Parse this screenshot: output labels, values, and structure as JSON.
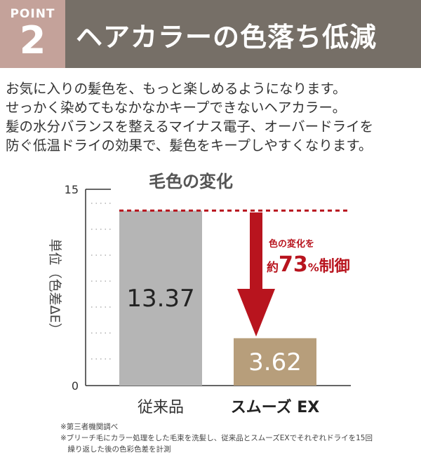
{
  "header": {
    "point_label": "POINT",
    "point_number": "2",
    "title": "ヘアカラーの色落ち低減",
    "colors": {
      "point_bg": "#c4a29a",
      "title_bg": "#766f67"
    }
  },
  "description": [
    "お気に入りの髪色を、もっと楽しめるようになります。",
    "せっかく染めてもなかなかキープできないヘアカラー。",
    "髪の水分バランスを整えるマイナス電子、オーバードライを",
    "防ぐ低温ドライの効果で、髪色をキープしやすくなります。"
  ],
  "chart_data": {
    "type": "bar",
    "title": "毛色の変化",
    "ylabel": "単位（色差ΔE）",
    "categories": [
      "従来品",
      "スムーズ EX"
    ],
    "values": [
      13.37,
      3.62
    ],
    "value_labels": [
      "13.37",
      "3.62"
    ],
    "yticks": [
      "0",
      "15"
    ],
    "ylim": [
      0,
      15
    ],
    "colors": [
      "#b5b5b5",
      "#b79e7b"
    ],
    "annotation": {
      "line1": "色の変化を",
      "prefix": "約",
      "number": "73",
      "unit": "%",
      "suffix": "制御",
      "color": "#b8141e"
    }
  },
  "notes": [
    "※第三者機関調べ",
    "※ブリーチ毛にカラー処理をした毛束を洗髪し、従来品とスムーズEXでそれぞれドライを15回",
    "　繰り返した後の色彩色差を計測"
  ]
}
